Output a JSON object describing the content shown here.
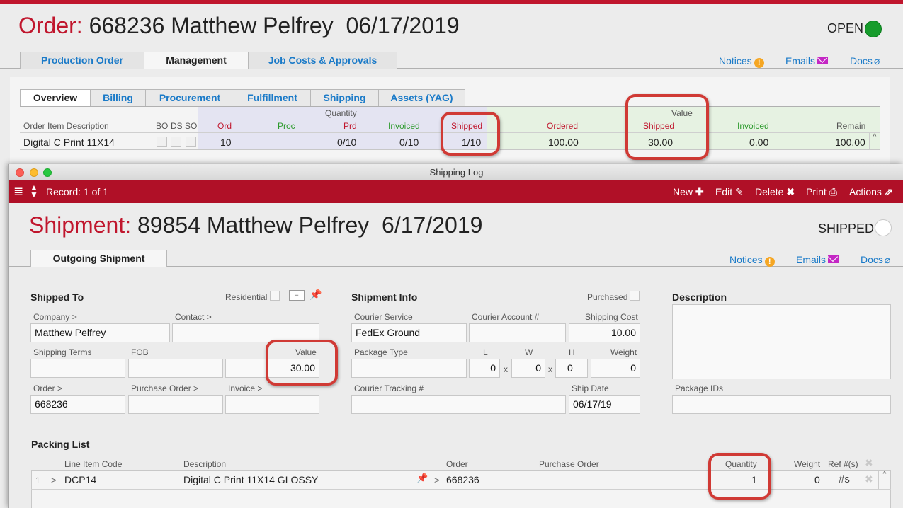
{
  "order": {
    "label": "Order:",
    "number": "668236",
    "customer": "Matthew Pelfrey",
    "date": "06/17/2019",
    "status": "OPEN",
    "status_color": "#179c2c",
    "main_tabs": [
      "Production Order",
      "Management",
      "Job Costs & Approvals"
    ],
    "active_main_tab": "Management",
    "links": {
      "notices": "Notices",
      "emails": "Emails",
      "docs": "Docs"
    },
    "sub_tabs": [
      "Overview",
      "Billing",
      "Procurement",
      "Fulfillment",
      "Shipping",
      "Assets (YAG)"
    ],
    "active_sub_tab": "Overview",
    "group_quantity": "Quantity",
    "group_value": "Value",
    "columns": {
      "description": "Order Item Description",
      "bo": "BO",
      "ds": "DS",
      "so": "SO",
      "ord": "Ord",
      "proc": "Proc",
      "prd": "Prd",
      "invoiced": "Invoiced",
      "shipped": "Shipped",
      "ordered": "Ordered",
      "value_shipped": "Shipped",
      "value_invoiced": "Invoiced",
      "remain": "Remain"
    },
    "row": {
      "description": "Digital C Print 11X14",
      "ord": "10",
      "prd": "0/10",
      "invoiced": "0/10",
      "shipped": "1/10",
      "ordered": "100.00",
      "value_shipped": "30.00",
      "value_invoiced": "0.00",
      "remain": "100.00"
    }
  },
  "shipping_window": {
    "title": "Shipping Log",
    "toolbar": {
      "record": "Record: 1 of 1",
      "new": "New",
      "edit": "Edit",
      "delete": "Delete",
      "print": "Print",
      "actions": "Actions"
    },
    "shipment_label": "Shipment:",
    "shipment_number": "89854",
    "customer": "Matthew Pelfrey",
    "date": "6/17/2019",
    "status": "SHIPPED",
    "tab": "Outgoing Shipment",
    "links": {
      "notices": "Notices",
      "emails": "Emails",
      "docs": "Docs"
    },
    "shipped_to": {
      "title": "Shipped To",
      "residential_label": "Residential",
      "company_label": "Company >",
      "company": "Matthew Pelfrey",
      "contact_label": "Contact >",
      "contact": "",
      "shipping_terms_label": "Shipping Terms",
      "fob_label": "FOB",
      "value_label": "Value",
      "value": "30.00",
      "order_label": "Order >",
      "order": "668236",
      "purchase_order_label": "Purchase Order >",
      "invoice_label": "Invoice >"
    },
    "shipment_info": {
      "title": "Shipment Info",
      "purchased_label": "Purchased",
      "courier_service_label": "Courier Service",
      "courier_service": "FedEx Ground",
      "courier_account_label": "Courier Account #",
      "shipping_cost_label": "Shipping Cost",
      "shipping_cost": "10.00",
      "package_type_label": "Package Type",
      "l_label": "L",
      "w_label": "W",
      "h_label": "H",
      "weight_label": "Weight",
      "l": "0",
      "w": "0",
      "h": "0",
      "weight": "0",
      "x_sep": "x",
      "tracking_label": "Courier Tracking #",
      "ship_date_label": "Ship Date",
      "ship_date": "06/17/19"
    },
    "description": {
      "title": "Description",
      "package_ids_label": "Package IDs"
    },
    "packing_list": {
      "title": "Packing List",
      "columns": {
        "line_item_code": "Line Item Code",
        "description": "Description",
        "order": "Order",
        "purchase_order": "Purchase Order",
        "quantity": "Quantity",
        "weight": "Weight",
        "ref": "Ref #(s)"
      },
      "rows": [
        {
          "index": "1",
          "code": "DCP14",
          "description": "Digital C Print 11X14 GLOSSY",
          "order": "668236",
          "quantity": "1",
          "weight": "0",
          "ref_icon": "#s"
        }
      ]
    }
  },
  "colors": {
    "brand_red": "#c0162d",
    "toolbar_red": "#b01027",
    "link_blue": "#1a7ac8",
    "callout_red": "#d03a35"
  }
}
